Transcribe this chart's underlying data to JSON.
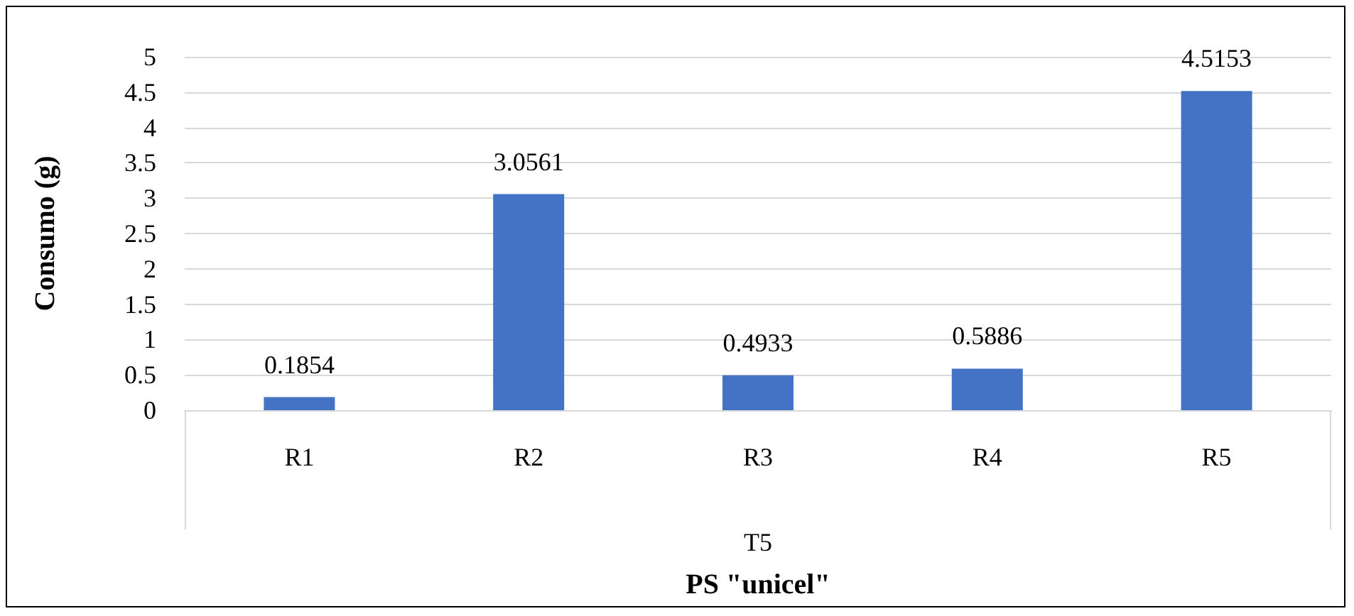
{
  "chart_data": {
    "type": "bar",
    "xlabel": "PS \"unicel\"",
    "ylabel": "Consumo (g)",
    "categories": [
      "R1",
      "R2",
      "R3",
      "R4",
      "R5"
    ],
    "values": [
      0.1854,
      3.0561,
      0.4933,
      0.5886,
      4.5153
    ],
    "color": "#4472c4",
    "ylim": [
      0,
      5
    ],
    "yticks": [
      0,
      0.5,
      1,
      1.5,
      2,
      2.5,
      3,
      3.5,
      4,
      4.5,
      5
    ],
    "grid": "y",
    "data_labels": true,
    "annotations": [
      "T5"
    ]
  }
}
